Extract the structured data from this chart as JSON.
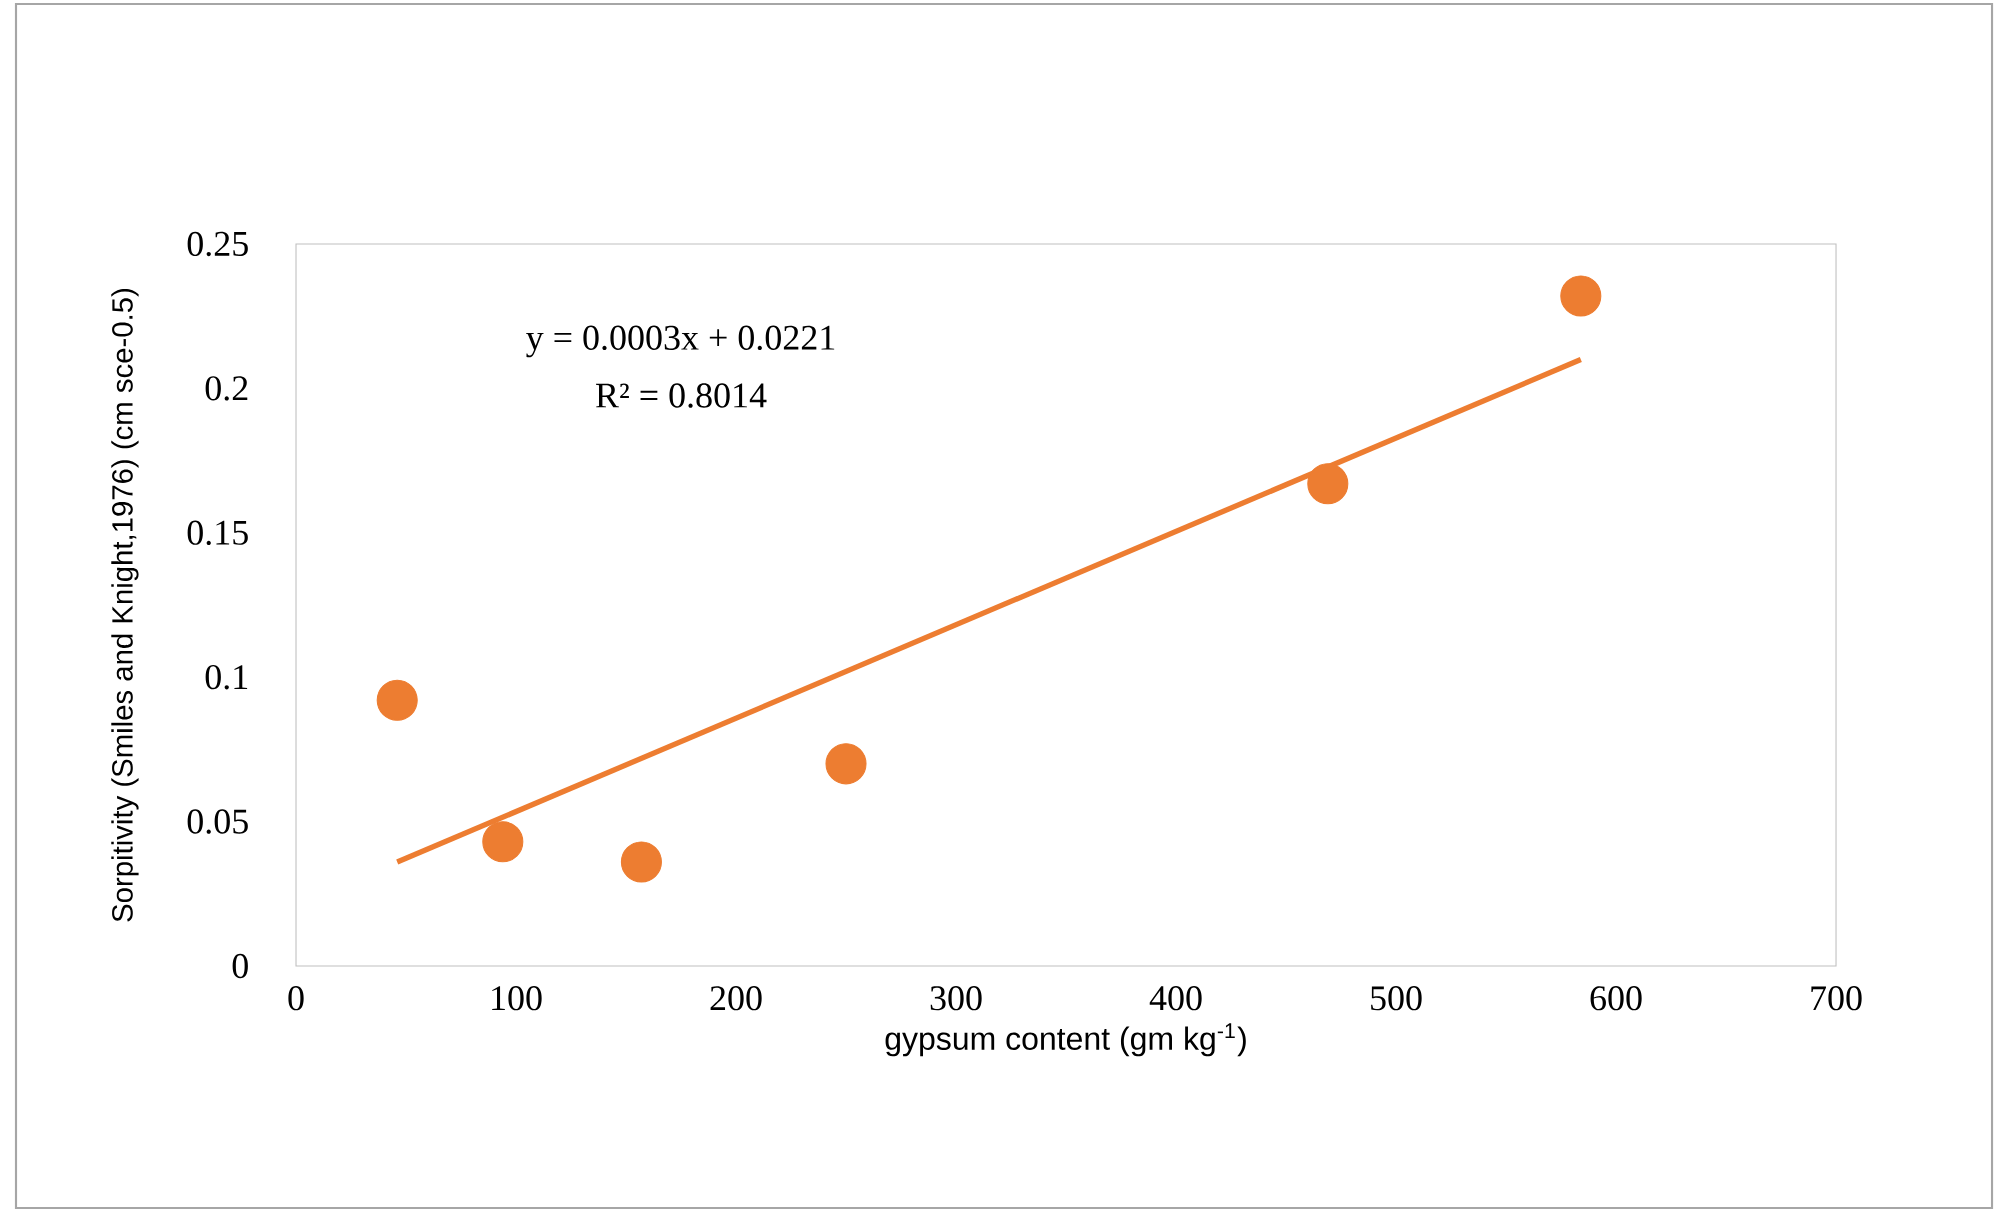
{
  "chart_data": {
    "type": "scatter",
    "xlabel": "gypsum content (gm kg$^{-1}$)",
    "ylabel": "Sorpitivity (Smiles and Knight,1976) (cm sce-0.5)",
    "annotations": [
      "y = 0.0003x + 0.0221",
      "R² = 0.8014"
    ],
    "xlim": [
      0,
      700
    ],
    "ylim": [
      0,
      0.25
    ],
    "xticks": [
      0,
      100,
      200,
      300,
      400,
      500,
      600,
      700
    ],
    "yticks": [
      0,
      0.05,
      0.1,
      0.15,
      0.2,
      0.25
    ],
    "series": [
      {
        "color": "#ed7d31",
        "x": [
          46,
          94,
          157,
          250,
          469,
          584
        ],
        "values": [
          0.092,
          0.043,
          0.036,
          0.07,
          0.167,
          0.232
        ]
      },
      {
        "type": "line",
        "color": "#ed7d31",
        "x": [
          46,
          584
        ],
        "values": [
          0.036,
          0.21
        ]
      }
    ]
  }
}
